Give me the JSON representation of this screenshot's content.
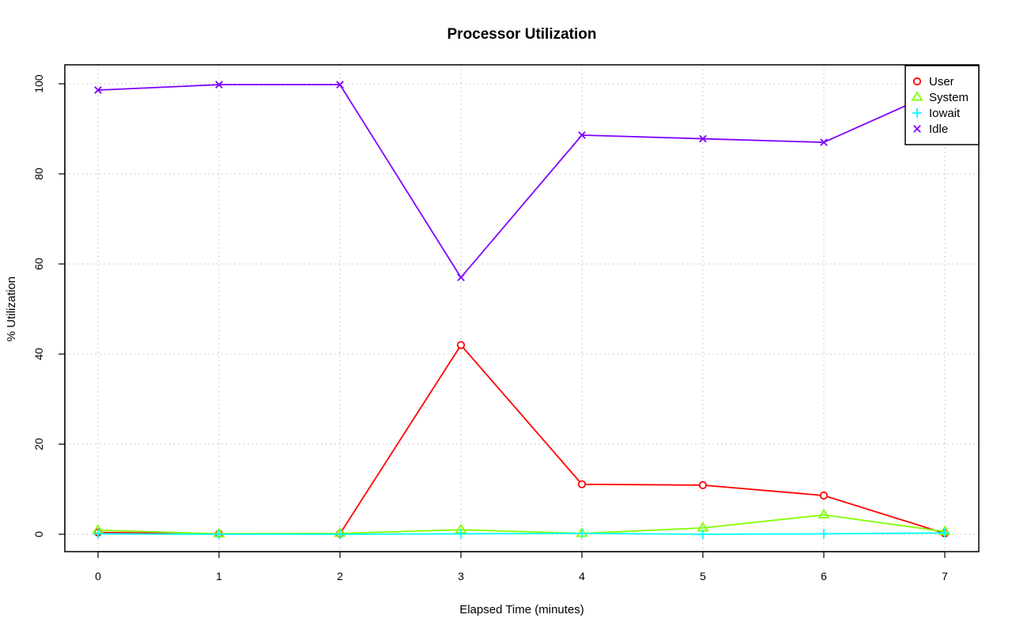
{
  "chart_data": {
    "type": "line",
    "title": "Processor Utilization",
    "xlabel": "Elapsed Time (minutes)",
    "ylabel": "% Utilization",
    "x": [
      0,
      1,
      2,
      3,
      4,
      5,
      6,
      7
    ],
    "xlim": [
      0,
      7
    ],
    "ylim": [
      0,
      100
    ],
    "x_ticks": [
      "0",
      "1",
      "2",
      "3",
      "4",
      "5",
      "6",
      "7"
    ],
    "y_ticks": [
      "0",
      "20",
      "40",
      "60",
      "80",
      "100"
    ],
    "grid": true,
    "legend_position": "top-right",
    "series": [
      {
        "name": "User",
        "color": "#ff0000",
        "marker": "circle",
        "values": [
          0.4,
          0.1,
          0.1,
          42.0,
          11.1,
          10.9,
          8.6,
          0.2
        ]
      },
      {
        "name": "System",
        "color": "#80ff00",
        "marker": "triangle",
        "values": [
          0.9,
          0.1,
          0.2,
          1.0,
          0.2,
          1.4,
          4.3,
          0.6
        ]
      },
      {
        "name": "Iowait",
        "color": "#00ffff",
        "marker": "plus",
        "values": [
          0.1,
          0.0,
          0.0,
          0.1,
          0.2,
          0.0,
          0.1,
          0.3
        ]
      },
      {
        "name": "Idle",
        "color": "#8000ff",
        "marker": "cross",
        "values": [
          98.6,
          99.8,
          99.8,
          57.0,
          88.6,
          87.8,
          87.0,
          99.0
        ]
      }
    ]
  }
}
